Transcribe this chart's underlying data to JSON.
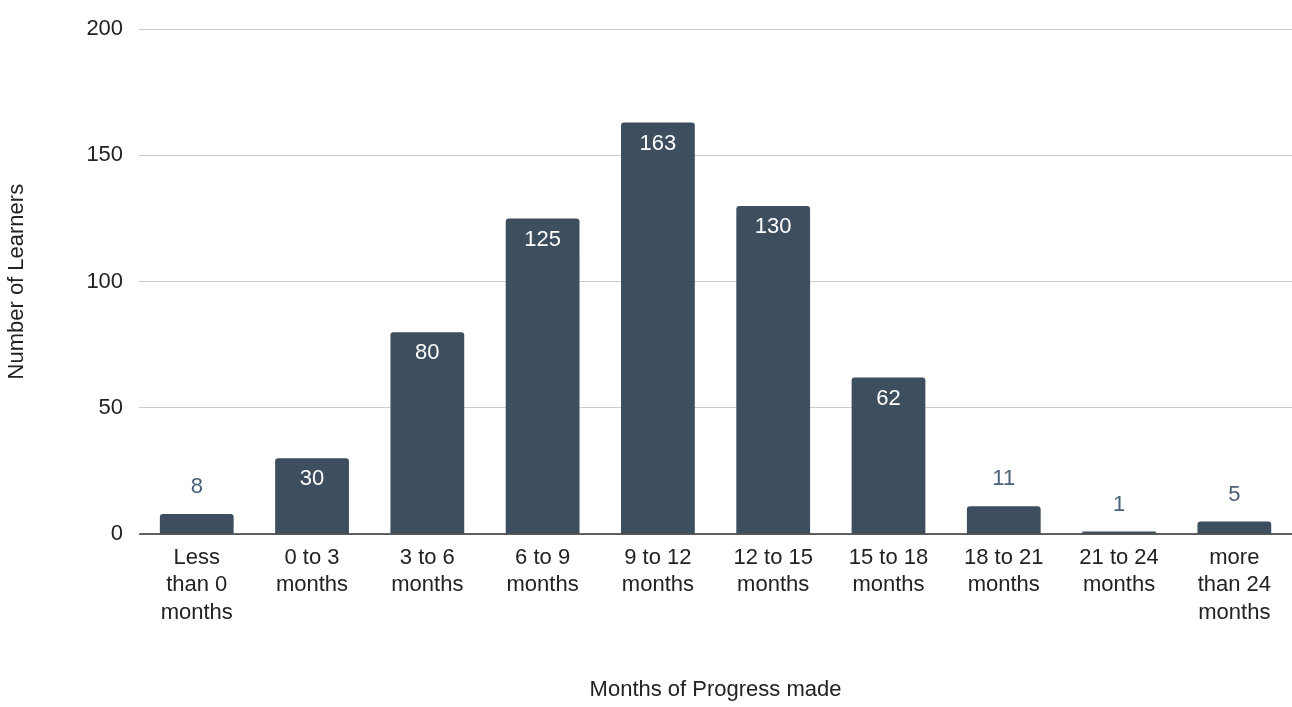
{
  "chart_data": {
    "type": "bar",
    "xlabel": "Months of Progress made",
    "ylabel": "Number of Learners",
    "categories": [
      "Less than 0 months",
      "0 to 3 months",
      "3 to 6 months",
      "6 to 9 months",
      "9 to 12 months",
      "12 to 15 months",
      "15 to 18 months",
      "18 to 21 months",
      "21 to 24 months",
      "more than 24 months"
    ],
    "values": [
      8,
      30,
      80,
      125,
      163,
      130,
      62,
      11,
      1,
      5
    ],
    "color": "#3d4f5f",
    "ylim": [
      0,
      200
    ],
    "yticks": [
      0,
      50,
      100,
      150,
      200
    ],
    "grid": "y",
    "data_labels": true,
    "legend": false
  }
}
